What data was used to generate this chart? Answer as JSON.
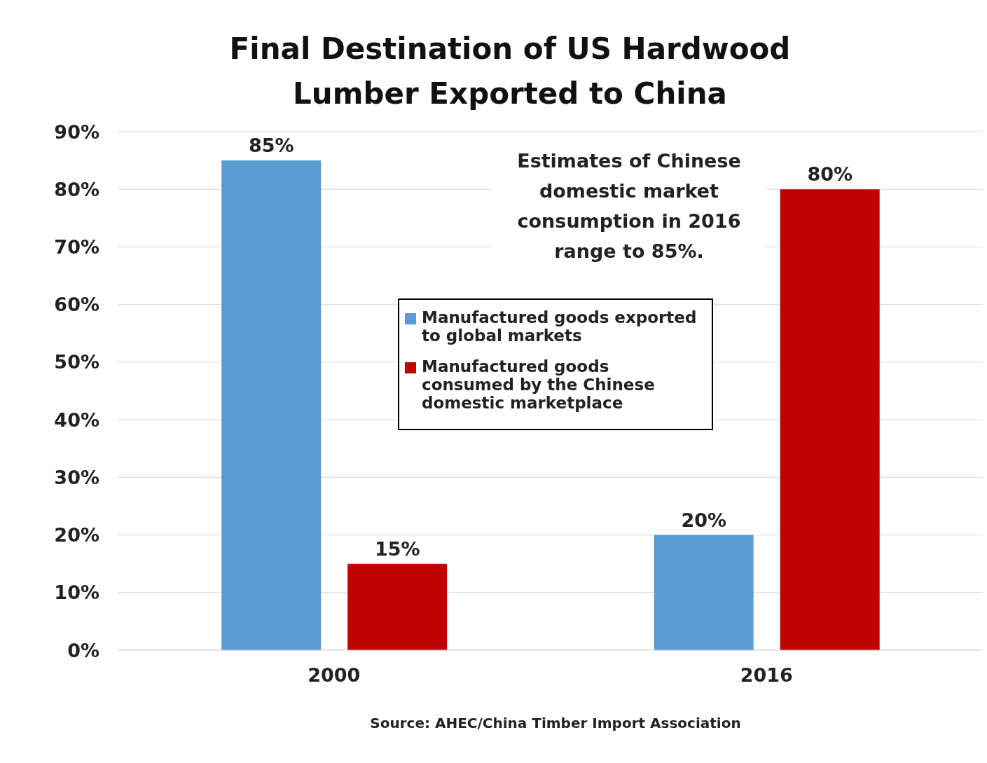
{
  "chart_data": {
    "type": "bar",
    "title": "Final Destination of US Hardwood Lumber Exported to China",
    "categories": [
      "2000",
      "2016"
    ],
    "series": [
      {
        "name": "Manufactured goods exported to global markets",
        "color": "#5b9bd5",
        "values": [
          85,
          20
        ],
        "value_labels": [
          "85%",
          "20%"
        ]
      },
      {
        "name": "Manufactured goods consumed by the Chinese domestic marketplace",
        "color": "#c00000",
        "values": [
          15,
          80
        ],
        "value_labels": [
          "15%",
          "80%"
        ]
      }
    ],
    "ylim": [
      0,
      90
    ],
    "yticks": [
      {
        "value": 0,
        "label": "0%"
      },
      {
        "value": 10,
        "label": "10%"
      },
      {
        "value": 20,
        "label": "20%"
      },
      {
        "value": 30,
        "label": "30%"
      },
      {
        "value": 40,
        "label": "40%"
      },
      {
        "value": 50,
        "label": "50%"
      },
      {
        "value": 60,
        "label": "60%"
      },
      {
        "value": 70,
        "label": "70%"
      },
      {
        "value": 80,
        "label": "80%"
      },
      {
        "value": 90,
        "label": "90%"
      }
    ],
    "grid": "y",
    "legend": "center",
    "annotations": [
      "Estimates of Chinese domestic market consumption in 2016 range to 85%.",
      "Source: AHEC/China Timber Import Association"
    ]
  }
}
